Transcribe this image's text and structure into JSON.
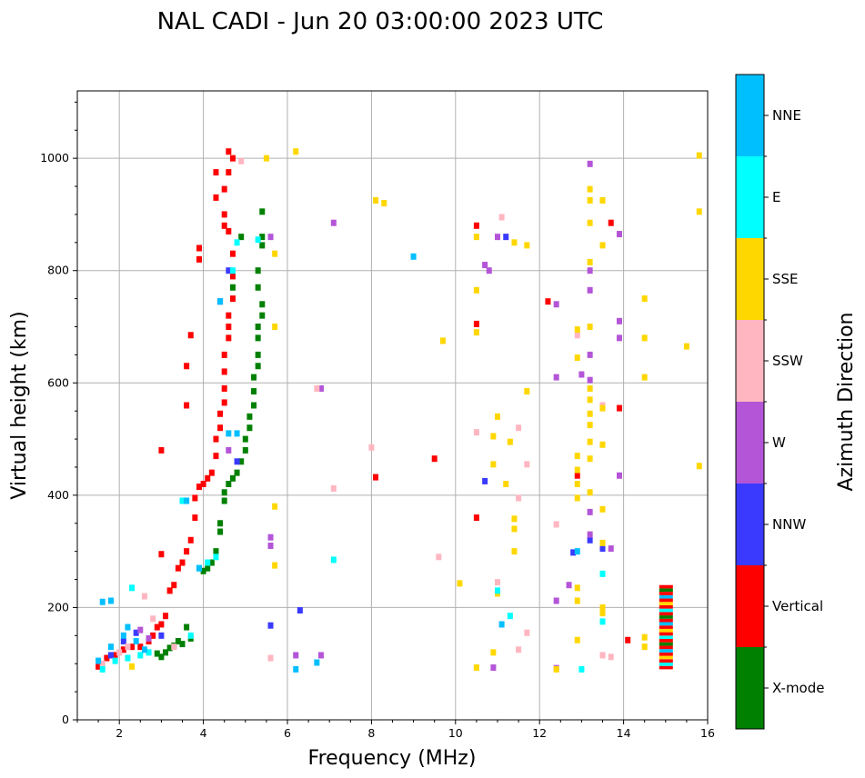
{
  "chart_data": {
    "type": "scatter",
    "title": "NAL CADI - Jun 20 03:00:00 2023 UTC",
    "xlabel": "Frequency (MHz)",
    "ylabel": "Virtual height (km)",
    "xlim": [
      1,
      16
    ],
    "ylim": [
      0,
      1120
    ],
    "xticks": [
      2,
      4,
      6,
      8,
      10,
      12,
      14,
      16
    ],
    "yticks": [
      0,
      200,
      400,
      600,
      800,
      1000
    ],
    "grid": true,
    "colorbar": {
      "title": "Azimuth Direction",
      "categories": [
        {
          "name": "X-mode",
          "color": "#008000"
        },
        {
          "name": "Vertical",
          "color": "#ff0000"
        },
        {
          "name": "NNW",
          "color": "#3a3aff"
        },
        {
          "name": "W",
          "color": "#b455d8"
        },
        {
          "name": "SSW",
          "color": "#ffb6c1"
        },
        {
          "name": "SSE",
          "color": "#ffd700"
        },
        {
          "name": "E",
          "color": "#00ffff"
        },
        {
          "name": "NNE",
          "color": "#00bfff"
        }
      ]
    },
    "series": [
      {
        "name": "X-mode",
        "points": [
          [
            2.9,
            118
          ],
          [
            3.0,
            112
          ],
          [
            3.1,
            120
          ],
          [
            3.2,
            128
          ],
          [
            3.3,
            132
          ],
          [
            3.4,
            140
          ],
          [
            3.5,
            135
          ],
          [
            3.6,
            165
          ],
          [
            3.7,
            145
          ],
          [
            4.0,
            265
          ],
          [
            4.1,
            270
          ],
          [
            4.2,
            280
          ],
          [
            4.3,
            300
          ],
          [
            4.4,
            335
          ],
          [
            4.4,
            350
          ],
          [
            4.5,
            390
          ],
          [
            4.5,
            405
          ],
          [
            4.6,
            420
          ],
          [
            4.7,
            430
          ],
          [
            4.8,
            440
          ],
          [
            4.9,
            460
          ],
          [
            5.0,
            480
          ],
          [
            5.0,
            500
          ],
          [
            5.1,
            520
          ],
          [
            5.1,
            540
          ],
          [
            5.2,
            560
          ],
          [
            5.2,
            585
          ],
          [
            5.2,
            610
          ],
          [
            5.3,
            630
          ],
          [
            5.3,
            650
          ],
          [
            5.3,
            680
          ],
          [
            5.3,
            700
          ],
          [
            5.4,
            720
          ],
          [
            5.4,
            740
          ],
          [
            5.3,
            770
          ],
          [
            5.3,
            800
          ],
          [
            5.4,
            845
          ],
          [
            5.4,
            860
          ],
          [
            5.4,
            905
          ],
          [
            4.9,
            860
          ],
          [
            4.7,
            770
          ]
        ]
      },
      {
        "name": "Vertical",
        "points": [
          [
            1.5,
            95
          ],
          [
            1.7,
            110
          ],
          [
            1.9,
            115
          ],
          [
            2.1,
            125
          ],
          [
            2.3,
            130
          ],
          [
            2.5,
            130
          ],
          [
            2.7,
            140
          ],
          [
            2.8,
            150
          ],
          [
            2.9,
            165
          ],
          [
            3.0,
            170
          ],
          [
            3.1,
            185
          ],
          [
            3.2,
            230
          ],
          [
            3.3,
            240
          ],
          [
            3.4,
            270
          ],
          [
            3.5,
            280
          ],
          [
            3.6,
            300
          ],
          [
            3.7,
            320
          ],
          [
            3.8,
            360
          ],
          [
            3.8,
            395
          ],
          [
            3.9,
            415
          ],
          [
            4.0,
            420
          ],
          [
            4.1,
            430
          ],
          [
            4.2,
            440
          ],
          [
            4.3,
            470
          ],
          [
            4.3,
            500
          ],
          [
            4.4,
            520
          ],
          [
            4.4,
            545
          ],
          [
            4.5,
            565
          ],
          [
            4.5,
            590
          ],
          [
            4.5,
            620
          ],
          [
            4.5,
            650
          ],
          [
            4.6,
            680
          ],
          [
            4.6,
            700
          ],
          [
            4.6,
            720
          ],
          [
            4.7,
            750
          ],
          [
            4.7,
            790
          ],
          [
            4.7,
            830
          ],
          [
            4.6,
            870
          ],
          [
            4.5,
            880
          ],
          [
            4.5,
            900
          ],
          [
            4.5,
            945
          ],
          [
            4.6,
            975
          ],
          [
            4.7,
            1000
          ],
          [
            4.6,
            1012
          ],
          [
            3.9,
            840
          ],
          [
            3.9,
            820
          ],
          [
            3.6,
            630
          ],
          [
            3.6,
            560
          ],
          [
            3.7,
            685
          ],
          [
            4.3,
            930
          ],
          [
            4.3,
            975
          ],
          [
            3.0,
            480
          ],
          [
            3.0,
            295
          ],
          [
            10.5,
            880
          ],
          [
            10.5,
            705
          ],
          [
            10.5,
            360
          ],
          [
            12.2,
            745
          ],
          [
            13.7,
            885
          ],
          [
            13.9,
            555
          ],
          [
            14.1,
            142
          ],
          [
            12.9,
            435
          ],
          [
            9.5,
            465
          ],
          [
            8.1,
            432
          ]
        ]
      },
      {
        "name": "NNW",
        "points": [
          [
            1.8,
            115
          ],
          [
            2.1,
            140
          ],
          [
            2.4,
            155
          ],
          [
            3.0,
            150
          ],
          [
            4.4,
            745
          ],
          [
            4.6,
            800
          ],
          [
            4.8,
            460
          ],
          [
            13.2,
            320
          ],
          [
            13.5,
            305
          ],
          [
            12.8,
            298
          ],
          [
            11.2,
            860
          ],
          [
            6.3,
            195
          ],
          [
            5.6,
            168
          ],
          [
            10.7,
            425
          ]
        ]
      },
      {
        "name": "W",
        "points": [
          [
            2.5,
            160
          ],
          [
            2.7,
            145
          ],
          [
            4.6,
            480
          ],
          [
            5.6,
            860
          ],
          [
            7.1,
            885
          ],
          [
            10.7,
            810
          ],
          [
            10.8,
            800
          ],
          [
            11.0,
            860
          ],
          [
            12.4,
            740
          ],
          [
            12.4,
            610
          ],
          [
            13.0,
            615
          ],
          [
            13.2,
            650
          ],
          [
            13.2,
            605
          ],
          [
            13.2,
            800
          ],
          [
            13.2,
            765
          ],
          [
            13.2,
            990
          ],
          [
            13.9,
            865
          ],
          [
            13.9,
            710
          ],
          [
            13.9,
            680
          ],
          [
            13.9,
            435
          ],
          [
            13.2,
            370
          ],
          [
            13.2,
            330
          ],
          [
            12.4,
            212
          ],
          [
            12.7,
            240
          ],
          [
            12.4,
            92
          ],
          [
            13.7,
            305
          ],
          [
            6.8,
            590
          ],
          [
            6.2,
            115
          ],
          [
            6.8,
            115
          ],
          [
            5.6,
            325
          ],
          [
            5.6,
            310
          ],
          [
            10.9,
            93
          ]
        ]
      },
      {
        "name": "SSW",
        "points": [
          [
            1.6,
            100
          ],
          [
            2.0,
            120
          ],
          [
            2.2,
            130
          ],
          [
            2.6,
            220
          ],
          [
            2.8,
            180
          ],
          [
            3.3,
            130
          ],
          [
            5.6,
            110
          ],
          [
            10.5,
            512
          ],
          [
            11.1,
            895
          ],
          [
            11.5,
            520
          ],
          [
            11.5,
            395
          ],
          [
            11.7,
            455
          ],
          [
            11.7,
            155
          ],
          [
            12.4,
            348
          ],
          [
            13.5,
            115
          ],
          [
            13.7,
            112
          ],
          [
            11.0,
            245
          ],
          [
            11.5,
            125
          ],
          [
            12.9,
            685
          ],
          [
            13.5,
            560
          ],
          [
            7.1,
            412
          ],
          [
            9.6,
            290
          ],
          [
            8.0,
            485
          ],
          [
            4.9,
            995
          ],
          [
            6.7,
            590
          ]
        ]
      },
      {
        "name": "SSE",
        "points": [
          [
            2.3,
            95
          ],
          [
            5.5,
            1000
          ],
          [
            5.7,
            830
          ],
          [
            5.7,
            700
          ],
          [
            5.7,
            380
          ],
          [
            5.7,
            275
          ],
          [
            6.2,
            1012
          ],
          [
            8.1,
            925
          ],
          [
            8.3,
            920
          ],
          [
            9.7,
            675
          ],
          [
            10.5,
            860
          ],
          [
            10.5,
            765
          ],
          [
            10.5,
            690
          ],
          [
            11.0,
            540
          ],
          [
            10.9,
            505
          ],
          [
            10.9,
            455
          ],
          [
            11.2,
            420
          ],
          [
            11.0,
            225
          ],
          [
            10.9,
            120
          ],
          [
            10.5,
            93
          ],
          [
            10.1,
            243
          ],
          [
            11.3,
            495
          ],
          [
            11.4,
            340
          ],
          [
            11.4,
            300
          ],
          [
            11.4,
            358
          ],
          [
            11.4,
            850
          ],
          [
            11.7,
            845
          ],
          [
            11.7,
            585
          ],
          [
            12.9,
            695
          ],
          [
            12.9,
            645
          ],
          [
            12.9,
            470
          ],
          [
            12.9,
            445
          ],
          [
            12.9,
            420
          ],
          [
            12.9,
            395
          ],
          [
            12.9,
            235
          ],
          [
            12.9,
            212
          ],
          [
            12.9,
            142
          ],
          [
            12.4,
            90
          ],
          [
            13.2,
            945
          ],
          [
            13.2,
            925
          ],
          [
            13.2,
            885
          ],
          [
            13.2,
            815
          ],
          [
            13.2,
            700
          ],
          [
            13.2,
            590
          ],
          [
            13.2,
            570
          ],
          [
            13.2,
            545
          ],
          [
            13.2,
            525
          ],
          [
            13.2,
            495
          ],
          [
            13.2,
            465
          ],
          [
            13.2,
            405
          ],
          [
            13.5,
            925
          ],
          [
            13.5,
            845
          ],
          [
            13.5,
            375
          ],
          [
            13.5,
            315
          ],
          [
            13.5,
            200
          ],
          [
            13.5,
            190
          ],
          [
            14.5,
            750
          ],
          [
            14.5,
            680
          ],
          [
            14.5,
            610
          ],
          [
            14.5,
            147
          ],
          [
            14.5,
            130
          ],
          [
            15.5,
            665
          ],
          [
            15.8,
            1005
          ],
          [
            15.8,
            905
          ],
          [
            15.8,
            452
          ],
          [
            13.5,
            555
          ],
          [
            13.5,
            490
          ]
        ]
      },
      {
        "name": "E",
        "points": [
          [
            1.6,
            90
          ],
          [
            1.9,
            105
          ],
          [
            2.2,
            110
          ],
          [
            2.5,
            115
          ],
          [
            2.7,
            120
          ],
          [
            2.3,
            235
          ],
          [
            3.5,
            390
          ],
          [
            3.7,
            150
          ],
          [
            3.9,
            270
          ],
          [
            4.1,
            280
          ],
          [
            4.3,
            290
          ],
          [
            4.7,
            800
          ],
          [
            4.8,
            850
          ],
          [
            5.3,
            855
          ],
          [
            11.0,
            230
          ],
          [
            11.3,
            185
          ],
          [
            13.5,
            260
          ],
          [
            13.5,
            175
          ],
          [
            13.0,
            90
          ],
          [
            7.1,
            285
          ]
        ]
      },
      {
        "name": "NNE",
        "points": [
          [
            1.6,
            210
          ],
          [
            1.8,
            212
          ],
          [
            1.5,
            105
          ],
          [
            1.8,
            130
          ],
          [
            2.1,
            150
          ],
          [
            2.2,
            165
          ],
          [
            2.4,
            140
          ],
          [
            2.6,
            125
          ],
          [
            3.6,
            390
          ],
          [
            3.9,
            270
          ],
          [
            4.6,
            510
          ],
          [
            4.4,
            745
          ],
          [
            4.8,
            510
          ],
          [
            6.2,
            90
          ],
          [
            6.7,
            102
          ],
          [
            9.0,
            825
          ],
          [
            11.1,
            170
          ],
          [
            12.9,
            300
          ]
        ]
      }
    ],
    "vertical_bar": {
      "x": 15.0,
      "y_min": 90,
      "y_max": 235
    }
  }
}
